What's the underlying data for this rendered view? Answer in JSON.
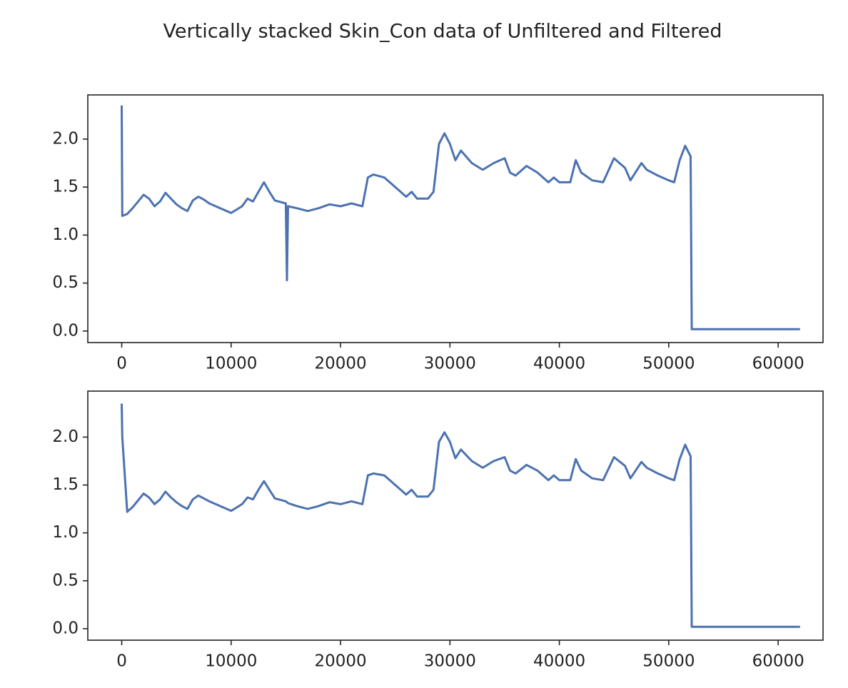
{
  "title": "Vertically stacked Skin_Con data of Unfiltered and Filtered",
  "chart_data": [
    {
      "type": "line",
      "x": [
        0,
        50,
        500,
        1000,
        1500,
        2000,
        2500,
        3000,
        3500,
        4000,
        4500,
        5000,
        5500,
        6000,
        6500,
        7000,
        7500,
        8000,
        9000,
        10000,
        11000,
        11500,
        12000,
        12500,
        13000,
        13500,
        14000,
        15000,
        15100,
        15200,
        16000,
        17000,
        18000,
        19000,
        20000,
        21000,
        22000,
        22500,
        23000,
        24000,
        25000,
        26000,
        26500,
        27000,
        28000,
        28500,
        29000,
        29500,
        30000,
        30500,
        31000,
        32000,
        33000,
        34000,
        35000,
        35500,
        36000,
        37000,
        38000,
        39000,
        39500,
        40000,
        41000,
        41500,
        42000,
        43000,
        44000,
        45000,
        46000,
        46500,
        47500,
        48000,
        49000,
        50000,
        50500,
        51000,
        51500,
        52000,
        52100,
        56000,
        62000
      ],
      "series": [
        {
          "color": "#4c72b0",
          "values": [
            2.35,
            1.2,
            1.22,
            1.28,
            1.35,
            1.42,
            1.38,
            1.3,
            1.35,
            1.44,
            1.38,
            1.32,
            1.28,
            1.25,
            1.36,
            1.4,
            1.37,
            1.33,
            1.28,
            1.23,
            1.3,
            1.38,
            1.35,
            1.45,
            1.55,
            1.45,
            1.36,
            1.33,
            0.53,
            1.3,
            1.28,
            1.25,
            1.28,
            1.32,
            1.3,
            1.33,
            1.3,
            1.6,
            1.63,
            1.6,
            1.5,
            1.4,
            1.45,
            1.38,
            1.38,
            1.45,
            1.95,
            2.06,
            1.95,
            1.78,
            1.88,
            1.75,
            1.68,
            1.75,
            1.8,
            1.65,
            1.62,
            1.72,
            1.65,
            1.55,
            1.6,
            1.55,
            1.55,
            1.78,
            1.65,
            1.57,
            1.55,
            1.8,
            1.7,
            1.57,
            1.75,
            1.68,
            1.62,
            1.57,
            1.55,
            1.78,
            1.93,
            1.82,
            0.02,
            0.02,
            0.02
          ]
        }
      ],
      "xlim": [
        -3100,
        64100
      ],
      "xticks": [
        0,
        10000,
        20000,
        30000,
        40000,
        50000,
        60000
      ],
      "ylim": [
        -0.12,
        2.46
      ],
      "yticks": [
        {
          "value": 0,
          "label": "0.0"
        },
        0.5,
        {
          "value": 1,
          "label": "1.0"
        },
        1.5,
        {
          "value": 2,
          "label": "2.0"
        }
      ]
    },
    {
      "type": "line",
      "x": [
        0,
        50,
        500,
        1000,
        1500,
        2000,
        2500,
        3000,
        3500,
        4000,
        4500,
        5000,
        5500,
        6000,
        6500,
        7000,
        7500,
        8000,
        9000,
        10000,
        11000,
        11500,
        12000,
        12500,
        13000,
        13500,
        14000,
        15000,
        15100,
        15200,
        16000,
        17000,
        18000,
        19000,
        20000,
        21000,
        22000,
        22500,
        23000,
        24000,
        25000,
        26000,
        26500,
        27000,
        28000,
        28500,
        29000,
        29500,
        30000,
        30500,
        31000,
        32000,
        33000,
        34000,
        35000,
        35500,
        36000,
        37000,
        38000,
        39000,
        39500,
        40000,
        41000,
        41500,
        42000,
        43000,
        44000,
        45000,
        46000,
        46500,
        47500,
        48000,
        49000,
        50000,
        50500,
        51000,
        51500,
        52000,
        52100,
        56000,
        62000
      ],
      "series": [
        {
          "color": "#4c72b0",
          "values": [
            2.35,
            2.0,
            1.22,
            1.27,
            1.34,
            1.41,
            1.37,
            1.3,
            1.35,
            1.43,
            1.37,
            1.32,
            1.28,
            1.25,
            1.35,
            1.39,
            1.36,
            1.33,
            1.28,
            1.23,
            1.3,
            1.37,
            1.35,
            1.45,
            1.54,
            1.45,
            1.36,
            1.33,
            1.32,
            1.31,
            1.28,
            1.25,
            1.28,
            1.32,
            1.3,
            1.33,
            1.3,
            1.6,
            1.62,
            1.6,
            1.5,
            1.4,
            1.45,
            1.38,
            1.38,
            1.45,
            1.95,
            2.05,
            1.95,
            1.78,
            1.87,
            1.75,
            1.68,
            1.75,
            1.79,
            1.65,
            1.62,
            1.71,
            1.65,
            1.55,
            1.6,
            1.55,
            1.55,
            1.77,
            1.65,
            1.57,
            1.55,
            1.79,
            1.7,
            1.57,
            1.74,
            1.68,
            1.62,
            1.57,
            1.55,
            1.77,
            1.92,
            1.8,
            0.02,
            0.02,
            0.02
          ]
        }
      ],
      "xlim": [
        -3100,
        64100
      ],
      "xticks": [
        0,
        10000,
        20000,
        30000,
        40000,
        50000,
        60000
      ],
      "ylim": [
        -0.12,
        2.48
      ],
      "yticks": [
        {
          "value": 0,
          "label": "0.0"
        },
        0.5,
        {
          "value": 1,
          "label": "1.0"
        },
        1.5,
        {
          "value": 2,
          "label": "2.0"
        }
      ]
    }
  ]
}
